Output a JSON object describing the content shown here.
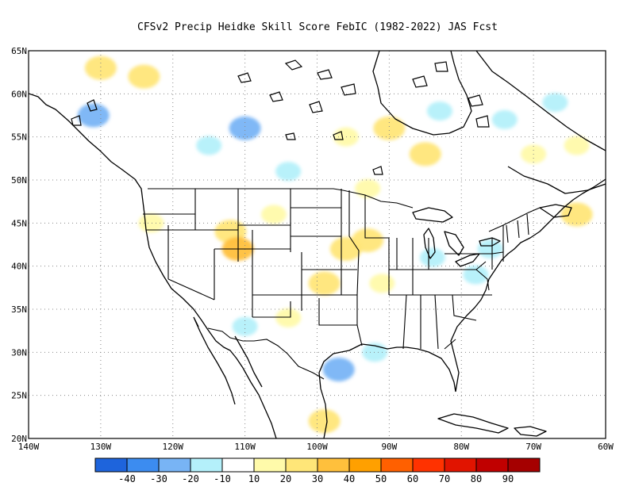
{
  "title": "CFSv2 Precip Heidke Skill Score FebIC (1982-2022) JAS Fcst",
  "map": {
    "projection": "lat-lon",
    "lon_range": [
      -140,
      -60
    ],
    "lat_range": [
      20,
      65
    ],
    "grid": "dotted",
    "lon_ticks": [
      {
        "lon": -140,
        "label": "140W"
      },
      {
        "lon": -130,
        "label": "130W"
      },
      {
        "lon": -120,
        "label": "120W"
      },
      {
        "lon": -110,
        "label": "110W"
      },
      {
        "lon": -100,
        "label": "100W"
      },
      {
        "lon": -90,
        "label": "90W"
      },
      {
        "lon": -80,
        "label": "80W"
      },
      {
        "lon": -70,
        "label": "70W"
      },
      {
        "lon": -60,
        "label": "60W"
      }
    ],
    "lat_ticks": [
      {
        "lat": 20,
        "label": "20N"
      },
      {
        "lat": 25,
        "label": "25N"
      },
      {
        "lat": 30,
        "label": "30N"
      },
      {
        "lat": 35,
        "label": "35N"
      },
      {
        "lat": 40,
        "label": "40N"
      },
      {
        "lat": 45,
        "label": "45N"
      },
      {
        "lat": 50,
        "label": "50N"
      },
      {
        "lat": 55,
        "label": "55N"
      },
      {
        "lat": 60,
        "label": "60N"
      },
      {
        "lat": 65,
        "label": "65N"
      }
    ]
  },
  "colorbar": {
    "colors": [
      "#1e64dc",
      "#3c8cf0",
      "#78b4f5",
      "#b4f0fa",
      "#ffffff",
      "#fffaaa",
      "#ffe678",
      "#ffc03c",
      "#ffa000",
      "#ff6000",
      "#ff3200",
      "#e11400",
      "#c00000",
      "#a50000"
    ],
    "labels": [
      "-40",
      "-30",
      "-20",
      "-10",
      "10",
      "20",
      "30",
      "40",
      "50",
      "60",
      "70",
      "80",
      "90"
    ]
  },
  "chart_data": {
    "type": "heatmap",
    "variable": "Heidke Skill Score",
    "patches": [
      {
        "lon": -130,
        "lat": 63,
        "level": 20
      },
      {
        "lon": -124,
        "lat": 62,
        "level": 20
      },
      {
        "lon": -131,
        "lat": 57.5,
        "level": -20
      },
      {
        "lon": -110,
        "lat": 56,
        "level": -20
      },
      {
        "lon": -115,
        "lat": 54,
        "level": -10
      },
      {
        "lon": -104,
        "lat": 51,
        "level": -10
      },
      {
        "lon": -96,
        "lat": 55,
        "level": 10
      },
      {
        "lon": -90,
        "lat": 56,
        "level": 20
      },
      {
        "lon": -85,
        "lat": 53,
        "level": 20
      },
      {
        "lon": -93,
        "lat": 49,
        "level": 10
      },
      {
        "lon": -83,
        "lat": 58,
        "level": -10
      },
      {
        "lon": -74,
        "lat": 57,
        "level": -10
      },
      {
        "lon": -67,
        "lat": 59,
        "level": -10
      },
      {
        "lon": -70,
        "lat": 53,
        "level": 10
      },
      {
        "lon": -64,
        "lat": 54,
        "level": 10
      },
      {
        "lon": -64,
        "lat": 46,
        "level": 20
      },
      {
        "lon": -112,
        "lat": 44,
        "level": 20
      },
      {
        "lon": -111,
        "lat": 42,
        "level": 30
      },
      {
        "lon": -123,
        "lat": 45,
        "level": 10
      },
      {
        "lon": -106,
        "lat": 46,
        "level": 10
      },
      {
        "lon": -96,
        "lat": 42,
        "level": 20
      },
      {
        "lon": -99,
        "lat": 38,
        "level": 20
      },
      {
        "lon": -93,
        "lat": 43,
        "level": 20
      },
      {
        "lon": -91,
        "lat": 38,
        "level": 10
      },
      {
        "lon": -84,
        "lat": 41,
        "level": -10
      },
      {
        "lon": -78,
        "lat": 39,
        "level": -10
      },
      {
        "lon": -76,
        "lat": 42,
        "level": -10
      },
      {
        "lon": -97,
        "lat": 28,
        "level": -20
      },
      {
        "lon": -92,
        "lat": 30,
        "level": -10
      },
      {
        "lon": -110,
        "lat": 33,
        "level": -10
      },
      {
        "lon": -104,
        "lat": 34,
        "level": 10
      },
      {
        "lon": -99,
        "lat": 22,
        "level": 20
      }
    ]
  }
}
